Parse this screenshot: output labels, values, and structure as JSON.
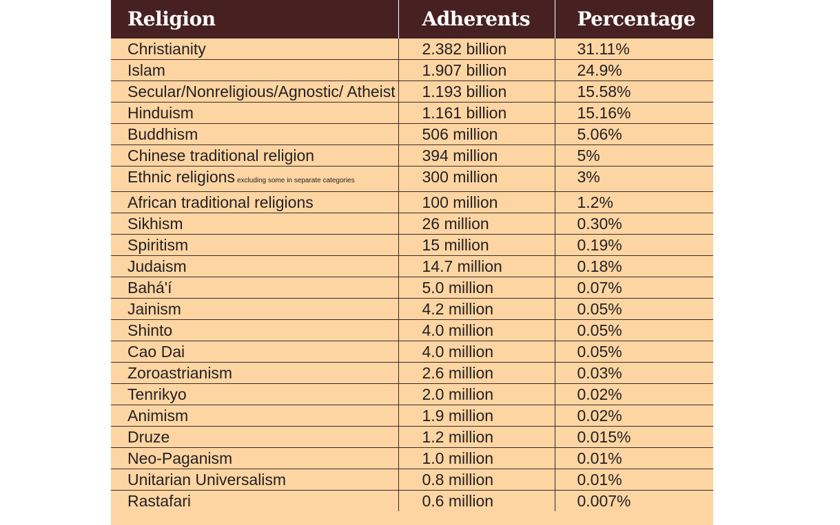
{
  "headers": {
    "religion": "Religion",
    "adherents": "Adherents",
    "percentage": "Percentage"
  },
  "rows": [
    {
      "religion": "Christianity",
      "note": "",
      "adherents": "2.382 billion",
      "percentage": "31.11%"
    },
    {
      "religion": "Islam",
      "note": "",
      "adherents": "1.907 billion",
      "percentage": "24.9%"
    },
    {
      "religion": "Secular/Nonreligious/Agnostic/ Atheist",
      "note": "",
      "adherents": "1.193 billion",
      "percentage": "15.58%"
    },
    {
      "religion": "Hinduism",
      "note": "",
      "adherents": "1.161 billion",
      "percentage": "15.16%"
    },
    {
      "religion": "Buddhism",
      "note": "",
      "adherents": "506 million",
      "percentage": "5.06%"
    },
    {
      "religion": "Chinese traditional religion",
      "note": "",
      "adherents": "394 million",
      "percentage": "5%"
    },
    {
      "religion": "Ethnic religions",
      "note": "excluding some in separate categories",
      "adherents": "300 million",
      "percentage": "3%"
    },
    {
      "religion": "African traditional religions",
      "note": "",
      "adherents": "100 million",
      "percentage": "1.2%"
    },
    {
      "religion": "Sikhism",
      "note": "",
      "adherents": "26 million",
      "percentage": "0.30%"
    },
    {
      "religion": "Spiritism",
      "note": "",
      "adherents": "15 million",
      "percentage": "0.19%"
    },
    {
      "religion": "Judaism",
      "note": "",
      "adherents": "14.7 million",
      "percentage": "0.18%"
    },
    {
      "religion": "Bahá'í",
      "note": "",
      "adherents": "5.0 million",
      "percentage": "0.07%"
    },
    {
      "religion": "Jainism",
      "note": "",
      "adherents": "4.2 million",
      "percentage": "0.05%"
    },
    {
      "religion": "Shinto",
      "note": "",
      "adherents": "4.0 million",
      "percentage": "0.05%"
    },
    {
      "religion": "Cao Dai",
      "note": "",
      "adherents": "4.0 million",
      "percentage": "0.05%"
    },
    {
      "religion": "Zoroastrianism",
      "note": "",
      "adherents": "2.6 million",
      "percentage": "0.03%"
    },
    {
      "religion": "Tenrikyo",
      "note": "",
      "adherents": "2.0 million",
      "percentage": "0.02%"
    },
    {
      "religion": "Animism",
      "note": "",
      "adherents": "1.9 million",
      "percentage": "0.02%"
    },
    {
      "religion": "Druze",
      "note": "",
      "adherents": "1.2 million",
      "percentage": "0.015%"
    },
    {
      "religion": "Neo-Paganism",
      "note": "",
      "adherents": "1.0 million",
      "percentage": "0.01%"
    },
    {
      "religion": "Unitarian Universalism",
      "note": "",
      "adherents": "0.8 million",
      "percentage": "0.01%"
    },
    {
      "religion": "Rastafari",
      "note": "",
      "adherents": "0.6 million",
      "percentage": "0.007%"
    }
  ]
}
